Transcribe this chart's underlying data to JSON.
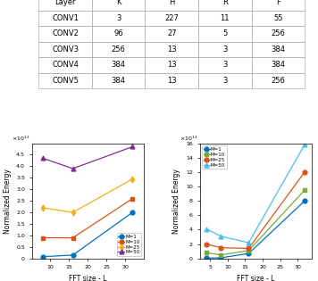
{
  "table": {
    "headers": [
      "Layer",
      "K",
      "H",
      "R",
      "F"
    ],
    "rows": [
      [
        "CONV1",
        "3",
        "227",
        "11",
        "55"
      ],
      [
        "CONV2",
        "96",
        "27",
        "5",
        "256"
      ],
      [
        "CONV3",
        "256",
        "13",
        "3",
        "384"
      ],
      [
        "CONV4",
        "384",
        "13",
        "3",
        "384"
      ],
      [
        "CONV5",
        "384",
        "13",
        "3",
        "256"
      ]
    ]
  },
  "plot_a": {
    "xlabel": "FFT size - L",
    "ylabel": "Normalized Energy",
    "x": [
      8,
      16,
      32
    ],
    "ylim": [
      0,
      5.0
    ],
    "yticks": [
      0,
      0.5,
      1.0,
      1.5,
      2.0,
      2.5,
      3.0,
      3.5,
      4.0,
      4.5
    ],
    "xticks": [
      10,
      15,
      20,
      25,
      30
    ],
    "xlim": [
      5,
      35
    ],
    "series": [
      {
        "label": "M=1",
        "y": [
          0.08,
          0.15,
          2.0
        ],
        "color": "#0072BD",
        "marker": "o"
      },
      {
        "label": "M=10",
        "y": [
          0.9,
          0.9,
          2.6
        ],
        "color": "#D95319",
        "marker": "s"
      },
      {
        "label": "M=25",
        "y": [
          2.2,
          2.0,
          3.45
        ],
        "color": "#EDB120",
        "marker": "d"
      },
      {
        "label": "M=50",
        "y": [
          4.35,
          3.9,
          4.85
        ],
        "color": "#7E2F8E",
        "marker": "^"
      }
    ]
  },
  "plot_b": {
    "xlabel": "FFT size - L",
    "ylabel": "Normalized Energy",
    "x": [
      4,
      8,
      16,
      32
    ],
    "ylim": [
      0,
      16
    ],
    "yticks": [
      0,
      2,
      4,
      6,
      8,
      10,
      12,
      14,
      16
    ],
    "xticks": [
      5,
      10,
      15,
      20,
      25,
      30
    ],
    "xlim": [
      2,
      34
    ],
    "series": [
      {
        "label": "M=1",
        "y": [
          0.05,
          0.1,
          0.7,
          8.0
        ],
        "color": "#0072BD",
        "marker": "o"
      },
      {
        "label": "M=10",
        "y": [
          0.8,
          0.5,
          1.1,
          9.5
        ],
        "color": "#77AC30",
        "marker": "s"
      },
      {
        "label": "M=25",
        "y": [
          2.0,
          1.5,
          1.4,
          12.0
        ],
        "color": "#D95319",
        "marker": "o"
      },
      {
        "label": "M=50",
        "y": [
          4.1,
          3.1,
          2.2,
          15.8
        ],
        "color": "#4DBEEE",
        "marker": "^"
      }
    ]
  },
  "bg_color": "#ffffff",
  "font_size": 5.5
}
